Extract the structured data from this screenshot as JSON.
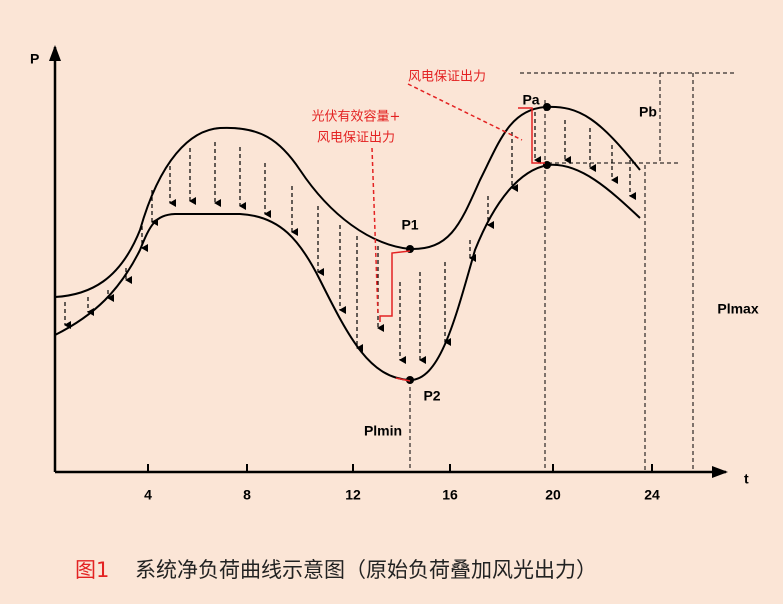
{
  "axes": {
    "y_label": "P",
    "x_label": "t",
    "x_ticks": [
      "4",
      "8",
      "12",
      "16",
      "20",
      "24"
    ]
  },
  "labels": {
    "p1": "P1",
    "p2": "P2",
    "pa": "Pa",
    "pb": "Pb",
    "plmin": "Plmin",
    "plmax": "Plmax"
  },
  "annotations": {
    "wind_guarantee": "风电保证出力",
    "pv_line1": "光伏有效容量+",
    "pv_line2": "风电保证出力"
  },
  "caption": {
    "number": "图1",
    "text": "系统净负荷曲线示意图（原始负荷叠加风光出力）"
  }
}
